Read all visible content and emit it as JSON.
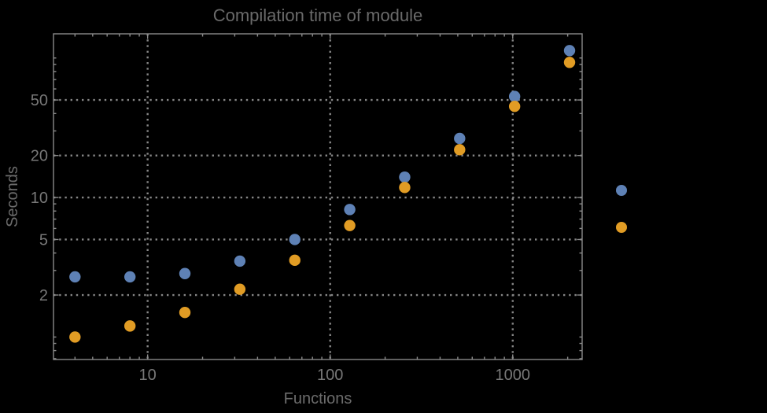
{
  "chart_data": {
    "type": "scatter",
    "title": "Compilation time of module",
    "xlabel": "Functions",
    "ylabel": "Seconds",
    "x_scale": "log",
    "y_scale": "log",
    "grid": "dotted",
    "x": [
      4,
      8,
      16,
      32,
      64,
      128,
      256,
      512,
      1024,
      2048
    ],
    "series": [
      {
        "name": "blue",
        "color": "#5e81b5",
        "values": [
          2.7,
          2.7,
          2.85,
          3.5,
          5.0,
          8.2,
          14.0,
          26.5,
          53,
          113
        ]
      },
      {
        "name": "orange",
        "color": "#e19c24",
        "values": [
          1.0,
          1.2,
          1.5,
          2.2,
          3.55,
          6.3,
          11.8,
          22,
          45,
          93
        ]
      }
    ],
    "x_tick_values": [
      10,
      100,
      1000
    ],
    "x_tick_labels": [
      "10",
      "100",
      "1000"
    ],
    "y_tick_values": [
      50,
      20,
      10,
      5,
      2
    ],
    "y_tick_labels": [
      "50",
      "20",
      "10",
      "5",
      "2"
    ],
    "xlim": [
      3.05,
      2400
    ],
    "ylim": [
      0.69,
      149
    ],
    "legend_position": "right",
    "legend": {
      "labels_visible": false,
      "markers": [
        {
          "name": "blue-series-marker",
          "color": "#5e81b5"
        },
        {
          "name": "orange-series-marker",
          "color": "#e19c24"
        }
      ]
    }
  },
  "colors": {
    "background": "#000000",
    "frame": "#8a8a8a",
    "grid": "#868686",
    "tick": "#8a8a8a",
    "title_text": "#6a6a6a",
    "axis_label_text": "#6c6c6c",
    "tick_label_text": "#787878"
  }
}
